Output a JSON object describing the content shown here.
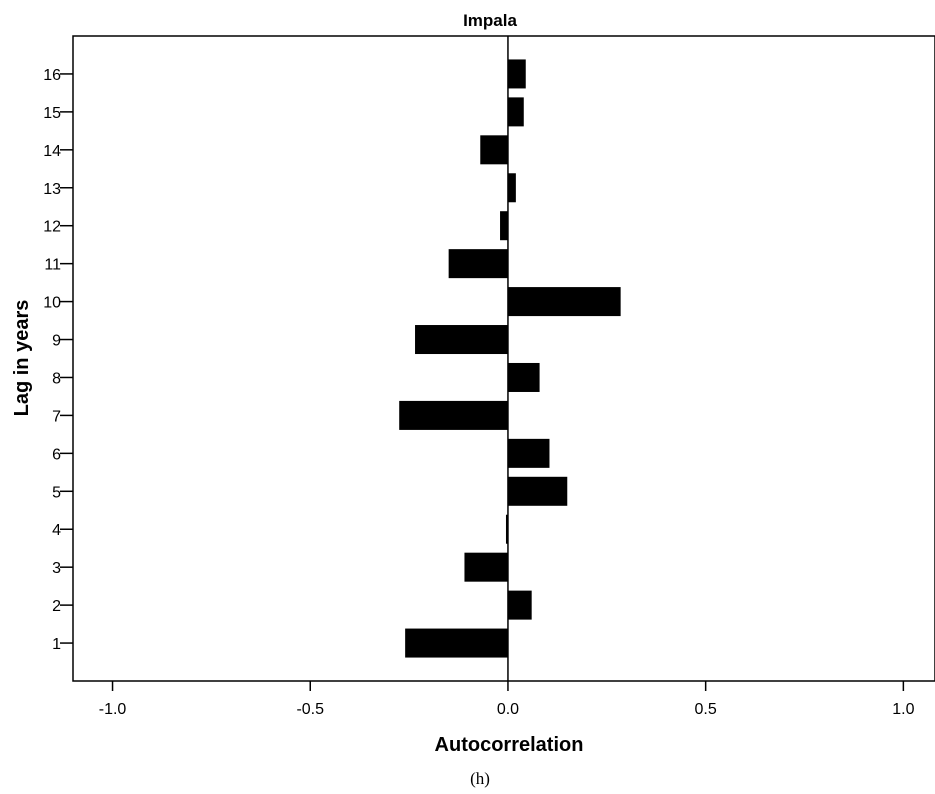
{
  "chart_data": {
    "type": "bar",
    "orientation": "horizontal",
    "title": "Impala",
    "xlabel": "Autocorrelation",
    "ylabel": "Lag in years",
    "caption": "(h)",
    "xlim": [
      -1.1,
      1.08
    ],
    "ylim": [
      0,
      17
    ],
    "x_ticks": [
      "-1.0",
      "-0.5",
      "0.0",
      "0.5",
      "1.0"
    ],
    "x_tick_values": [
      -1.0,
      -0.5,
      0.0,
      0.5,
      1.0
    ],
    "categories": [
      "1",
      "2",
      "3",
      "4",
      "5",
      "6",
      "7",
      "8",
      "9",
      "10",
      "11",
      "12",
      "13",
      "14",
      "15",
      "16"
    ],
    "values": [
      -0.26,
      0.06,
      -0.11,
      -0.005,
      0.15,
      0.105,
      -0.275,
      0.08,
      -0.235,
      0.285,
      -0.15,
      -0.02,
      0.02,
      -0.07,
      0.04,
      0.045
    ],
    "bar_color": "#000000",
    "grid": false,
    "legend": "none"
  }
}
